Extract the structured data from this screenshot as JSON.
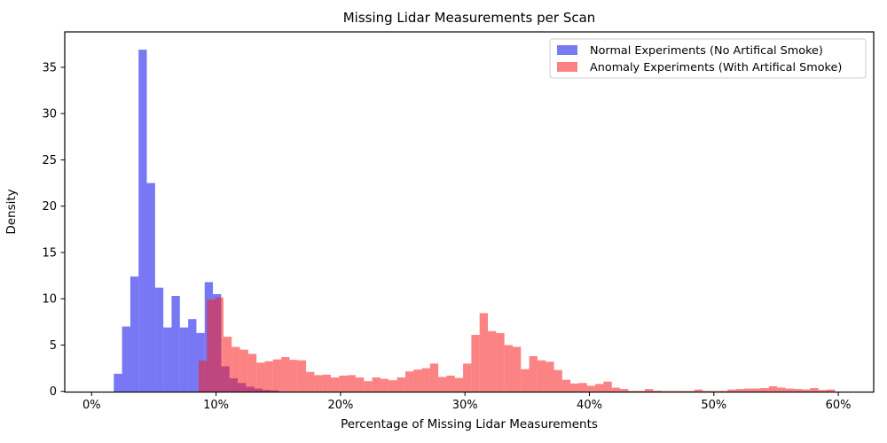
{
  "chart_data": {
    "type": "bar",
    "subtype": "histogram-overlaid-density",
    "title": "Missing Lidar Measurements per Scan",
    "xlabel": "Percentage of Missing Lidar Measurements",
    "ylabel": "Density",
    "x_tick_values": [
      0,
      10,
      20,
      30,
      40,
      50,
      60
    ],
    "x_tick_labels": [
      "0%",
      "10%",
      "20%",
      "30%",
      "40%",
      "50%",
      "60%"
    ],
    "y_tick_values": [
      0,
      5,
      10,
      15,
      20,
      25,
      30,
      35
    ],
    "y_tick_labels": [
      "0",
      "5",
      "10",
      "15",
      "20",
      "25",
      "30",
      "35"
    ],
    "xlim": [
      -2.2,
      62.9
    ],
    "ylim": [
      0,
      38.8
    ],
    "grid": false,
    "legend_position": "upper right",
    "bin_width_percent": 0.664,
    "series": [
      {
        "name": "Normal Experiments (No Artifical Smoke)",
        "bar_color": "rgba(10,10,235,0.55)",
        "legend_color": "#7b7bf0",
        "start_percent": 1.78,
        "heights": [
          1.9,
          7.0,
          12.4,
          36.9,
          22.5,
          11.2,
          6.9,
          10.3,
          6.9,
          7.8,
          6.3,
          11.8,
          10.5,
          2.7,
          1.4,
          0.9,
          0.5,
          0.3,
          0.15,
          0.1
        ]
      },
      {
        "name": "Anomaly Experiments (With Artifical Smoke)",
        "bar_color": "rgba(250,30,30,0.55)",
        "legend_color": "#fc8181",
        "start_percent": 8.6,
        "heights": [
          3.3,
          9.9,
          10.15,
          5.9,
          4.8,
          4.5,
          4.05,
          3.1,
          3.25,
          3.45,
          3.7,
          3.4,
          3.35,
          2.1,
          1.75,
          1.8,
          1.5,
          1.7,
          1.75,
          1.5,
          1.1,
          1.5,
          1.35,
          1.2,
          1.5,
          2.15,
          2.35,
          2.5,
          3.0,
          1.55,
          1.7,
          1.45,
          3.0,
          6.1,
          8.45,
          6.5,
          6.3,
          5.0,
          4.8,
          2.4,
          3.8,
          3.35,
          3.2,
          2.3,
          1.25,
          0.85,
          0.9,
          0.6,
          0.8,
          1.05,
          0.4,
          0.25,
          0.05,
          0.05,
          0.25,
          0.08,
          0.04,
          0.04,
          0.04,
          0.05,
          0.2,
          0.05,
          0.04,
          0.05,
          0.2,
          0.25,
          0.3,
          0.3,
          0.35,
          0.55,
          0.4,
          0.3,
          0.25,
          0.2,
          0.35,
          0.15,
          0.2
        ]
      }
    ],
    "colors": {
      "overlap_blend": "#c0477e",
      "axis_line": "#000000",
      "legend_border": "#cccccc",
      "background": "#ffffff"
    }
  }
}
